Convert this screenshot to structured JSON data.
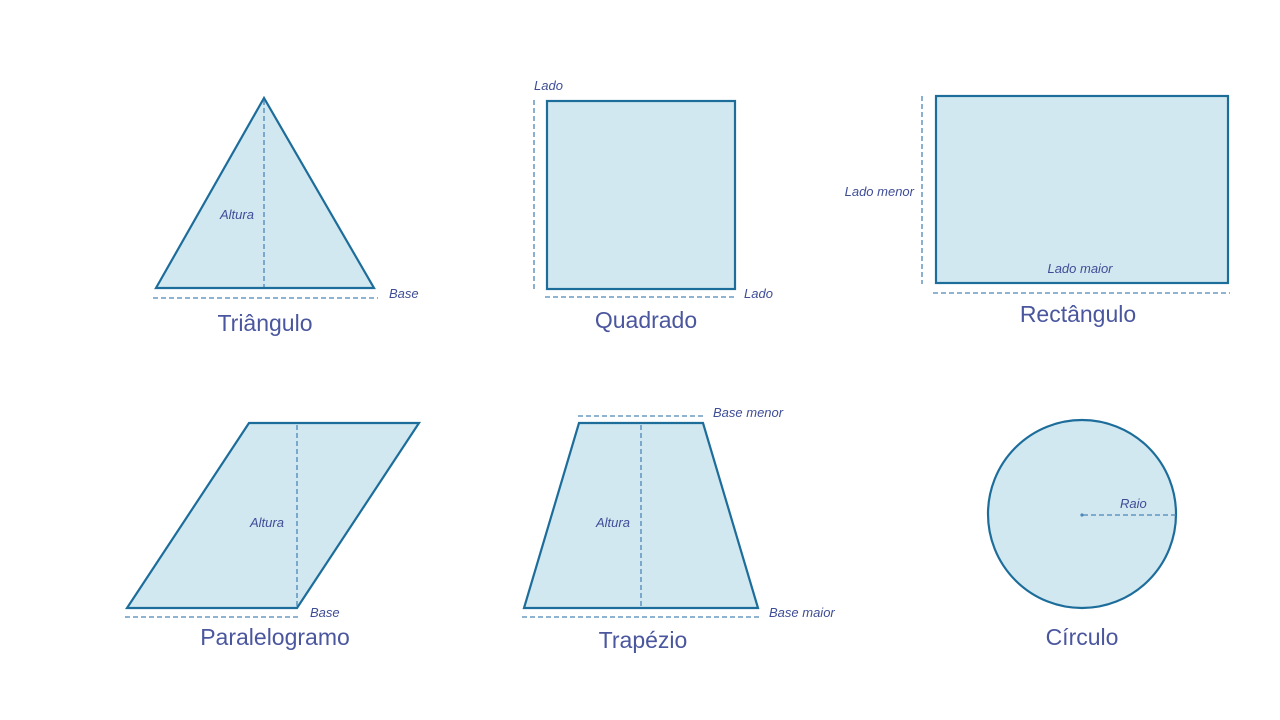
{
  "colors": {
    "fill": "#d2e8f1",
    "stroke": "#1d6d9b",
    "dash": "#4a86b8",
    "text": "#4a569e"
  },
  "shapes": {
    "triangle": {
      "title": "Triângulo",
      "height_label": "Altura",
      "base_label": "Base"
    },
    "square": {
      "title": "Quadrado",
      "side_top_label": "Lado",
      "side_bottom_label": "Lado"
    },
    "rectangle": {
      "title": "Rectângulo",
      "short_side_label": "Lado menor",
      "long_side_label": "Lado maior"
    },
    "parallelogram": {
      "title": "Paralelogramo",
      "height_label": "Altura",
      "base_label": "Base"
    },
    "trapezoid": {
      "title": "Trapézio",
      "small_base_label": "Base menor",
      "height_label": "Altura",
      "large_base_label": "Base maior"
    },
    "circle": {
      "title": "Círculo",
      "radius_label": "Raio"
    }
  }
}
